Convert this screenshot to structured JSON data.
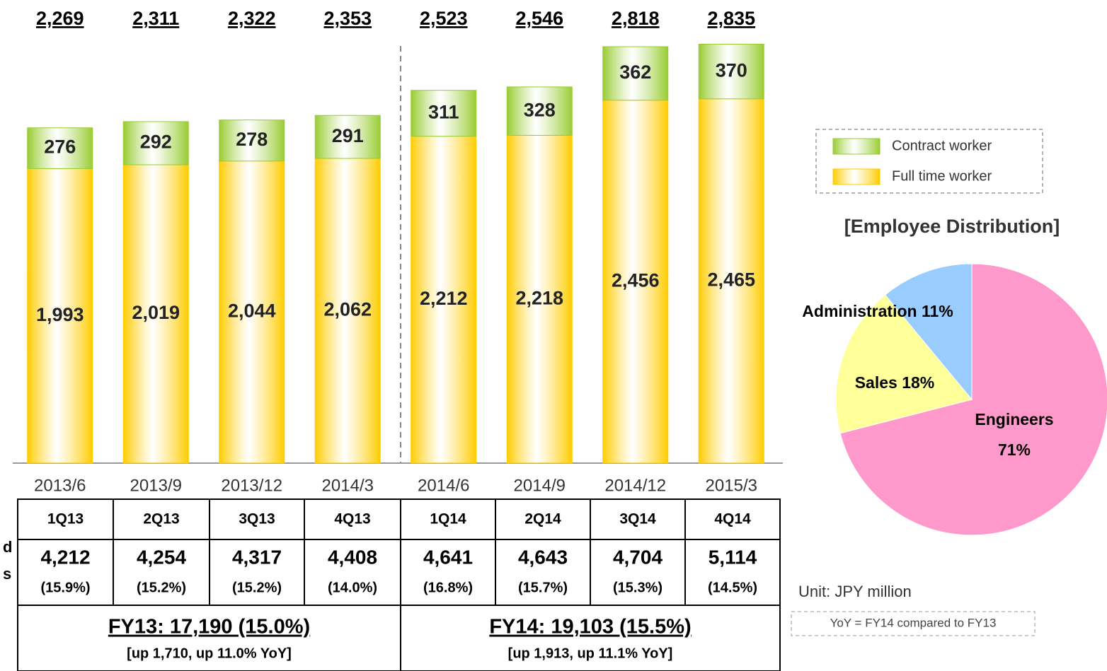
{
  "chart_data": [
    {
      "type": "stacked_bar",
      "categories": [
        "2013/6",
        "2013/9",
        "2013/12",
        "2014/3",
        "2014/6",
        "2014/9",
        "2014/12",
        "2015/3"
      ],
      "series": [
        {
          "name": "Contract worker",
          "color": "#99cc33",
          "values": [
            276,
            292,
            278,
            291,
            311,
            328,
            362,
            370
          ],
          "value_labels": [
            "276",
            "292",
            "278",
            "291",
            "311",
            "328",
            "362",
            "370"
          ]
        },
        {
          "name": "Full time worker",
          "color": "#ffcc00",
          "values": [
            1993,
            2019,
            2044,
            2062,
            2212,
            2218,
            2456,
            2465
          ],
          "value_labels": [
            "1,993",
            "2,019",
            "2,044",
            "2,062",
            "2,212",
            "2,218",
            "2,456",
            "2,465"
          ]
        }
      ],
      "total_labels": [
        "2,269",
        "2,311",
        "2,322",
        "2,353",
        "2,523",
        "2,546",
        "2,818",
        "2,835"
      ]
    },
    {
      "type": "pie",
      "title": "[Employee Distribution]",
      "categories": [
        "Engineers",
        "Sales",
        "Administration"
      ],
      "values": [
        71,
        18,
        11
      ],
      "value_labels": [
        "71%",
        "18%",
        "11%"
      ],
      "colors": [
        "#ff99cc",
        "#ffff99",
        "#99ccff"
      ]
    }
  ],
  "table": {
    "row_label_fragments": [
      "d",
      "s"
    ],
    "quarters": [
      "1Q13",
      "2Q13",
      "3Q13",
      "4Q13",
      "1Q14",
      "2Q14",
      "3Q14",
      "4Q14"
    ],
    "sales": [
      "4,212",
      "4,254",
      "4,317",
      "4,408",
      "4,641",
      "4,643",
      "4,704",
      "5,114"
    ],
    "margins": [
      "(15.9%)",
      "(15.2%)",
      "(15.2%)",
      "(14.0%)",
      "(16.8%)",
      "(15.7%)",
      "(15.3%)",
      "(14.5%)"
    ],
    "fy": [
      {
        "headline": "FY13: 17,190 (15.0%)",
        "detail": "[up 1,710, up 11.0% YoY]"
      },
      {
        "headline": "FY14: 19,103 (15.5%)",
        "detail": "[up 1,913, up 11.1% YoY]"
      }
    ]
  },
  "notes": {
    "unit": "Unit: JPY million",
    "yoy": "YoY = FY14 compared to FY13"
  }
}
